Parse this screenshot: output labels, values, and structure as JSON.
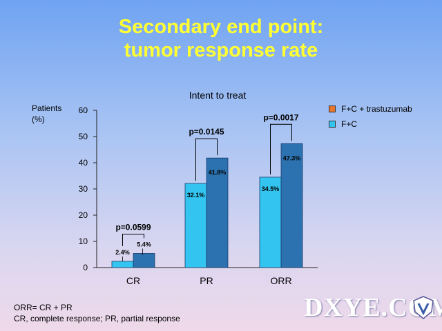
{
  "slide": {
    "title_line1": "Secondary end point:",
    "title_line2": "tumor response rate",
    "subtitle": "Intent to treat",
    "ylabel_line1": "Patients",
    "ylabel_line2": "(%)",
    "footnote_line1": "ORR= CR + PR",
    "footnote_line2": "CR, complete response; PR, partial response",
    "watermark": "DXYE.COM"
  },
  "colors": {
    "title": "#ffff33",
    "series1": "#2c72b0",
    "series1_legend": "#e8772e",
    "series2": "#33c4f0"
  },
  "chart_data": {
    "type": "bar",
    "categories": [
      "CR",
      "PR",
      "ORR"
    ],
    "series": [
      {
        "name": "F+C + trastuzumab",
        "values": [
          5.4,
          41.8,
          47.3
        ],
        "labels": [
          "5.4%",
          "41.8%",
          "47.3%"
        ]
      },
      {
        "name": "F+C",
        "values": [
          2.4,
          32.1,
          34.5
        ],
        "labels": [
          "2.4%",
          "32.1%",
          "34.5%"
        ]
      }
    ],
    "pvalues": [
      "p=0.0599",
      "p=0.0145",
      "p=0.0017"
    ],
    "ylim": [
      0,
      60
    ],
    "yticks": [
      0,
      10,
      20,
      30,
      40,
      50,
      60
    ],
    "legend_position": "top-right"
  }
}
